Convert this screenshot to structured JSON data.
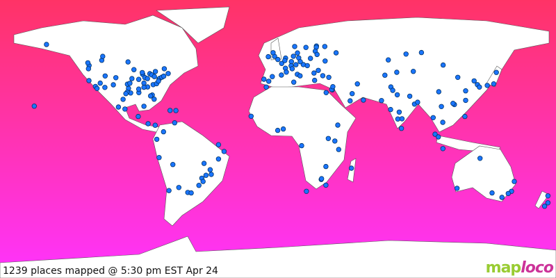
{
  "status": {
    "caption": "1239 places mapped @ 5:30 pm EST Apr 24"
  },
  "logo": {
    "part1": "map",
    "part2": "loco"
  },
  "colors": {
    "ocean_top": "#ff3366",
    "ocean_bottom": "#ff33ff",
    "land": "#ffffff",
    "marker": "#1a75ff",
    "marker_outline": "#003366",
    "logo_green": "#99cc33",
    "logo_pink": "#cc3399"
  },
  "projection": "equirectangular",
  "markers": [
    [
      47.6,
      -122.3
    ],
    [
      45.5,
      -122.7
    ],
    [
      37.8,
      -122.4
    ],
    [
      34.0,
      -118.2
    ],
    [
      32.7,
      -117.2
    ],
    [
      36.2,
      -115.1
    ],
    [
      33.4,
      -112.1
    ],
    [
      39.7,
      -105.0
    ],
    [
      40.8,
      -111.9
    ],
    [
      35.1,
      -106.6
    ],
    [
      29.8,
      -95.4
    ],
    [
      32.8,
      -96.8
    ],
    [
      30.3,
      -97.7
    ],
    [
      29.4,
      -98.5
    ],
    [
      41.9,
      -87.6
    ],
    [
      44.9,
      -93.3
    ],
    [
      39.1,
      -94.6
    ],
    [
      38.6,
      -90.2
    ],
    [
      36.2,
      -86.8
    ],
    [
      33.7,
      -84.4
    ],
    [
      25.8,
      -80.2
    ],
    [
      28.5,
      -81.4
    ],
    [
      27.9,
      -82.5
    ],
    [
      35.2,
      -80.8
    ],
    [
      38.9,
      -77.0
    ],
    [
      39.3,
      -76.6
    ],
    [
      40.0,
      -75.2
    ],
    [
      40.7,
      -74.0
    ],
    [
      42.4,
      -71.1
    ],
    [
      43.7,
      -79.4
    ],
    [
      45.5,
      -73.6
    ],
    [
      42.3,
      -83.0
    ],
    [
      41.5,
      -81.7
    ],
    [
      40.4,
      -80.0
    ],
    [
      39.8,
      -86.2
    ],
    [
      39.1,
      -84.5
    ],
    [
      43.0,
      -87.9
    ],
    [
      35.5,
      -97.5
    ],
    [
      36.1,
      -95.9
    ],
    [
      30.0,
      -90.1
    ],
    [
      32.3,
      -90.2
    ],
    [
      33.5,
      -86.8
    ],
    [
      35.8,
      -78.6
    ],
    [
      37.5,
      -77.4
    ],
    [
      49.3,
      -123.1
    ],
    [
      51.0,
      -114.1
    ],
    [
      53.5,
      -113.5
    ],
    [
      49.9,
      -97.1
    ],
    [
      61.2,
      -149.9
    ],
    [
      21.3,
      -157.8
    ],
    [
      19.4,
      -99.1
    ],
    [
      20.7,
      -103.3
    ],
    [
      25.7,
      -100.3
    ],
    [
      21.2,
      -86.8
    ],
    [
      14.6,
      -90.5
    ],
    [
      9.9,
      -84.1
    ],
    [
      8.9,
      -79.5
    ],
    [
      18.5,
      -69.9
    ],
    [
      18.4,
      -66.1
    ],
    [
      10.5,
      -66.9
    ],
    [
      4.7,
      -74.1
    ],
    [
      -0.2,
      -78.5
    ],
    [
      -12.0,
      -77.0
    ],
    [
      -16.5,
      -68.1
    ],
    [
      -33.4,
      -70.6
    ],
    [
      -34.6,
      -58.4
    ],
    [
      -34.9,
      -56.2
    ],
    [
      -23.5,
      -46.6
    ],
    [
      -22.9,
      -43.2
    ],
    [
      -15.8,
      -47.9
    ],
    [
      -19.9,
      -43.9
    ],
    [
      -25.4,
      -49.3
    ],
    [
      -30.0,
      -51.2
    ],
    [
      -12.97,
      -38.5
    ],
    [
      -8.05,
      -34.9
    ],
    [
      -3.7,
      -38.5
    ],
    [
      -31.4,
      -64.2
    ],
    [
      -27.5,
      -48.5
    ],
    [
      51.5,
      -0.1
    ],
    [
      53.5,
      -2.2
    ],
    [
      55.9,
      -3.2
    ],
    [
      53.3,
      -6.3
    ],
    [
      48.9,
      2.4
    ],
    [
      45.8,
      4.8
    ],
    [
      43.3,
      5.4
    ],
    [
      52.4,
      4.9
    ],
    [
      50.8,
      4.4
    ],
    [
      52.5,
      13.4
    ],
    [
      48.1,
      11.6
    ],
    [
      50.1,
      8.7
    ],
    [
      53.6,
      10.0
    ],
    [
      47.4,
      8.5
    ],
    [
      48.2,
      16.4
    ],
    [
      50.1,
      14.4
    ],
    [
      52.2,
      21.0
    ],
    [
      47.5,
      19.0
    ],
    [
      44.4,
      26.1
    ],
    [
      42.7,
      23.3
    ],
    [
      41.9,
      12.5
    ],
    [
      45.5,
      9.2
    ],
    [
      40.9,
      14.3
    ],
    [
      40.4,
      -3.7
    ],
    [
      41.4,
      2.2
    ],
    [
      38.7,
      -9.1
    ],
    [
      37.4,
      -6.0
    ],
    [
      37.98,
      23.7
    ],
    [
      41.0,
      29.0
    ],
    [
      39.9,
      32.9
    ],
    [
      59.3,
      18.1
    ],
    [
      59.9,
      10.8
    ],
    [
      55.7,
      12.6
    ],
    [
      60.2,
      24.9
    ],
    [
      59.4,
      24.8
    ],
    [
      56.9,
      24.1
    ],
    [
      54.7,
      25.3
    ],
    [
      55.8,
      37.6
    ],
    [
      59.9,
      30.3
    ],
    [
      50.5,
      30.5
    ],
    [
      31.8,
      35.2
    ],
    [
      32.1,
      34.8
    ],
    [
      33.9,
      35.5
    ],
    [
      30.0,
      31.2
    ],
    [
      25.2,
      55.3
    ],
    [
      24.7,
      46.7
    ],
    [
      29.4,
      48.0
    ],
    [
      35.7,
      51.4
    ],
    [
      33.7,
      73.1
    ],
    [
      31.5,
      74.3
    ],
    [
      24.9,
      67.0
    ],
    [
      28.6,
      77.2
    ],
    [
      19.1,
      72.9
    ],
    [
      12.97,
      77.6
    ],
    [
      13.1,
      80.3
    ],
    [
      17.4,
      78.5
    ],
    [
      22.6,
      88.4
    ],
    [
      6.9,
      79.9
    ],
    [
      27.7,
      85.3
    ],
    [
      23.8,
      90.4
    ],
    [
      13.8,
      100.5
    ],
    [
      3.1,
      101.7
    ],
    [
      1.35,
      103.8
    ],
    [
      -6.2,
      106.8
    ],
    [
      14.6,
      121.0
    ],
    [
      10.8,
      106.7
    ],
    [
      21.0,
      105.8
    ],
    [
      22.3,
      114.2
    ],
    [
      23.1,
      113.3
    ],
    [
      31.2,
      121.5
    ],
    [
      39.9,
      116.4
    ],
    [
      30.6,
      104.1
    ],
    [
      25.0,
      121.5
    ],
    [
      37.6,
      127.0
    ],
    [
      35.2,
      129.1
    ],
    [
      35.7,
      139.7
    ],
    [
      34.7,
      135.5
    ],
    [
      43.1,
      141.4
    ],
    [
      33.6,
      130.4
    ],
    [
      43.8,
      87.6
    ],
    [
      47.9,
      106.9
    ],
    [
      43.2,
      76.9
    ],
    [
      41.3,
      69.2
    ],
    [
      51.2,
      71.4
    ],
    [
      56.0,
      92.9
    ],
    [
      55.0,
      82.9
    ],
    [
      -33.9,
      151.2
    ],
    [
      -37.8,
      145.0
    ],
    [
      -27.5,
      153.0
    ],
    [
      -31.9,
      115.9
    ],
    [
      -34.9,
      138.6
    ],
    [
      -35.3,
      149.1
    ],
    [
      -12.5,
      130.8
    ],
    [
      -36.8,
      174.8
    ],
    [
      -41.3,
      174.8
    ],
    [
      -43.5,
      172.6
    ],
    [
      33.6,
      -7.6
    ],
    [
      36.8,
      10.2
    ],
    [
      6.5,
      3.4
    ],
    [
      5.6,
      -0.2
    ],
    [
      14.7,
      -17.4
    ],
    [
      9.0,
      38.7
    ],
    [
      -1.3,
      36.8
    ],
    [
      -6.8,
      39.3
    ],
    [
      0.3,
      32.6
    ],
    [
      -26.2,
      28.0
    ],
    [
      -33.9,
      18.4
    ],
    [
      -29.9,
      31.0
    ],
    [
      -17.8,
      31.0
    ],
    [
      -4.3,
      15.3
    ],
    [
      -18.9,
      47.5
    ],
    [
      -25.7,
      28.2
    ]
  ]
}
